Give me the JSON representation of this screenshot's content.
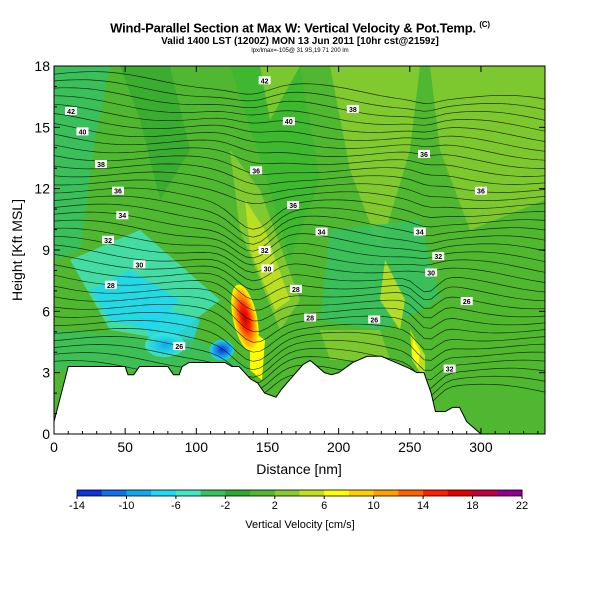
{
  "header": {
    "title": "Wind-Parallel Section at Max W: Vertical Velocity & Pot.Temp.",
    "title_superscript": "(C)",
    "subtitle": "Valid 1400 LST (1200Z) MON 13 Jun 2011 [10hr cst@2159z]",
    "subsubtitle": "lpx/lmax=-105@ 31 9S,19 71 200 lm"
  },
  "chart_data": {
    "type": "contour-section",
    "title": "Wind-Parallel Section at Max W: Vertical Velocity & Pot.Temp.",
    "xlabel": "Distance [nm]",
    "ylabel": "Height [Kft MSL]",
    "xlim": [
      0,
      345
    ],
    "ylim": [
      0,
      18
    ],
    "xticks": [
      0,
      50,
      100,
      150,
      200,
      250,
      300
    ],
    "yticks": [
      0,
      3,
      6,
      9,
      12,
      15,
      18
    ],
    "colorbar": {
      "label": "Vertical Velocity [cm/s]",
      "ticks": [
        -14,
        -10,
        -6,
        -2,
        2,
        6,
        10,
        14,
        18,
        22
      ],
      "levels": [
        -14,
        -12,
        -10,
        -8,
        -6,
        -4,
        -2,
        0,
        2,
        4,
        6,
        8,
        10,
        12,
        14,
        16,
        18,
        20,
        22
      ],
      "colors": [
        "#1030d8",
        "#1070e8",
        "#10a8f0",
        "#20d8f0",
        "#40e8c8",
        "#38c060",
        "#30a830",
        "#50b830",
        "#88cc30",
        "#c0e020",
        "#ffff00",
        "#ffd000",
        "#ffa000",
        "#ff6000",
        "#ff2000",
        "#e00000",
        "#c00040",
        "#900090"
      ]
    },
    "terrain_kft": [
      [
        0,
        0.6
      ],
      [
        10,
        3.3
      ],
      [
        20,
        3.3
      ],
      [
        30,
        3.3
      ],
      [
        40,
        3.3
      ],
      [
        50,
        3.3
      ],
      [
        52,
        2.9
      ],
      [
        56,
        2.9
      ],
      [
        60,
        3.3
      ],
      [
        70,
        3.3
      ],
      [
        80,
        3.3
      ],
      [
        84,
        2.9
      ],
      [
        88,
        2.9
      ],
      [
        90,
        3.3
      ],
      [
        95,
        3.5
      ],
      [
        100,
        3.5
      ],
      [
        110,
        3.5
      ],
      [
        120,
        3.5
      ],
      [
        125,
        3.3
      ],
      [
        130,
        3.3
      ],
      [
        134,
        3.0
      ],
      [
        138,
        2.7
      ],
      [
        143,
        2.5
      ],
      [
        148,
        2.0
      ],
      [
        152,
        1.9
      ],
      [
        156,
        1.8
      ],
      [
        160,
        2.2
      ],
      [
        165,
        2.6
      ],
      [
        170,
        3.0
      ],
      [
        175,
        3.4
      ],
      [
        180,
        3.6
      ],
      [
        185,
        3.3
      ],
      [
        190,
        3.0
      ],
      [
        195,
        2.9
      ],
      [
        200,
        3.0
      ],
      [
        210,
        3.5
      ],
      [
        220,
        3.8
      ],
      [
        230,
        3.8
      ],
      [
        240,
        3.5
      ],
      [
        250,
        3.2
      ],
      [
        255,
        3.0
      ],
      [
        260,
        3.0
      ],
      [
        265,
        2.0
      ],
      [
        268,
        1.1
      ],
      [
        275,
        1.1
      ],
      [
        280,
        1.3
      ],
      [
        285,
        1.3
      ],
      [
        290,
        0.6
      ],
      [
        295,
        0.3
      ],
      [
        300,
        0
      ],
      [
        345,
        0
      ]
    ],
    "theta_labels": [
      {
        "text": "42",
        "x": 12,
        "y": 15.8
      },
      {
        "text": "40",
        "x": 20,
        "y": 14.8
      },
      {
        "text": "38",
        "x": 33,
        "y": 13.2
      },
      {
        "text": "36",
        "x": 45,
        "y": 11.9
      },
      {
        "text": "34",
        "x": 48,
        "y": 10.7
      },
      {
        "text": "32",
        "x": 38,
        "y": 9.5
      },
      {
        "text": "30",
        "x": 60,
        "y": 8.3
      },
      {
        "text": "28",
        "x": 40,
        "y": 7.3
      },
      {
        "text": "26",
        "x": 88,
        "y": 4.3
      },
      {
        "text": "42",
        "x": 148,
        "y": 17.3
      },
      {
        "text": "40",
        "x": 165,
        "y": 15.3
      },
      {
        "text": "38",
        "x": 210,
        "y": 15.9
      },
      {
        "text": "36",
        "x": 142,
        "y": 12.9
      },
      {
        "text": "36",
        "x": 260,
        "y": 13.7
      },
      {
        "text": "36",
        "x": 300,
        "y": 11.9
      },
      {
        "text": "36",
        "x": 168,
        "y": 11.2
      },
      {
        "text": "34",
        "x": 188,
        "y": 9.9
      },
      {
        "text": "34",
        "x": 257,
        "y": 9.9
      },
      {
        "text": "32",
        "x": 148,
        "y": 9.0
      },
      {
        "text": "32",
        "x": 270,
        "y": 8.7
      },
      {
        "text": "30",
        "x": 150,
        "y": 8.1
      },
      {
        "text": "30",
        "x": 265,
        "y": 7.9
      },
      {
        "text": "28",
        "x": 170,
        "y": 7.1
      },
      {
        "text": "26",
        "x": 290,
        "y": 6.5
      },
      {
        "text": "28",
        "x": 180,
        "y": 5.7
      },
      {
        "text": "26",
        "x": 225,
        "y": 5.6
      },
      {
        "text": "32",
        "x": 278,
        "y": 3.2
      }
    ]
  }
}
